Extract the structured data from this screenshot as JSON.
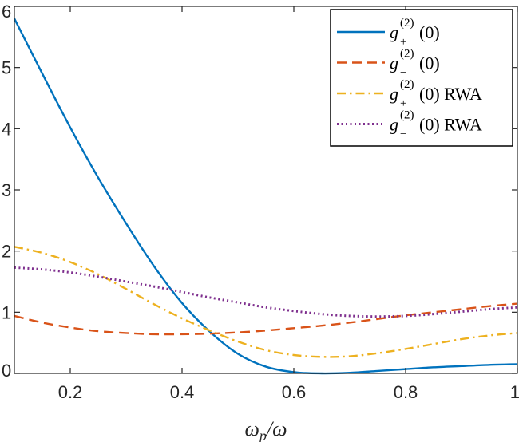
{
  "chart_data": {
    "type": "line",
    "title": "",
    "xlabel_main": "ω",
    "xlabel_sub": "p",
    "xlabel_rest": "/ω",
    "ylabel": "",
    "xlim": [
      0.1,
      1.0
    ],
    "ylim": [
      0,
      6
    ],
    "x_ticks": [
      0.2,
      0.4,
      0.6,
      0.8,
      1
    ],
    "x_tick_labels": [
      "0.2",
      "0.4",
      "0.6",
      "0.8",
      "1"
    ],
    "y_ticks": [
      0,
      1,
      2,
      3,
      4,
      5,
      6
    ],
    "y_tick_labels": [
      "0",
      "1",
      "2",
      "3",
      "4",
      "5",
      "6"
    ],
    "grid": false,
    "legend_position": "top-right",
    "series": [
      {
        "name": "g_+^(2)(0)",
        "legend": {
          "g": "g",
          "sub": "+",
          "sup": "(2)",
          "arg": "(0)",
          "suffix": ""
        },
        "color": "#0072BD",
        "style": "solid",
        "x": [
          0.1,
          0.15,
          0.2,
          0.25,
          0.3,
          0.35,
          0.4,
          0.45,
          0.5,
          0.55,
          0.6,
          0.65,
          0.7,
          0.75,
          0.8,
          0.85,
          0.9,
          0.95,
          1.0
        ],
        "y": [
          5.8,
          4.9,
          4.02,
          3.2,
          2.45,
          1.75,
          1.15,
          0.68,
          0.32,
          0.11,
          0.02,
          0.0,
          0.01,
          0.04,
          0.07,
          0.1,
          0.12,
          0.14,
          0.15
        ]
      },
      {
        "name": "g_-^(2)(0)",
        "legend": {
          "g": "g",
          "sub": "−",
          "sup": "(2)",
          "arg": "(0)",
          "suffix": ""
        },
        "color": "#D95319",
        "style": "dashed",
        "x": [
          0.1,
          0.15,
          0.2,
          0.25,
          0.3,
          0.35,
          0.4,
          0.45,
          0.5,
          0.55,
          0.6,
          0.65,
          0.7,
          0.75,
          0.8,
          0.85,
          0.9,
          0.95,
          1.0
        ],
        "y": [
          0.94,
          0.83,
          0.75,
          0.69,
          0.66,
          0.64,
          0.64,
          0.65,
          0.67,
          0.7,
          0.74,
          0.78,
          0.83,
          0.89,
          0.95,
          1.0,
          1.05,
          1.1,
          1.14
        ]
      },
      {
        "name": "g_+^(2)(0) RWA",
        "legend": {
          "g": "g",
          "sub": "+",
          "sup": "(2)",
          "arg": "(0)",
          "suffix": "RWA"
        },
        "color": "#EDB120",
        "style": "dashdot",
        "x": [
          0.1,
          0.15,
          0.2,
          0.25,
          0.3,
          0.35,
          0.4,
          0.45,
          0.5,
          0.55,
          0.6,
          0.65,
          0.7,
          0.75,
          0.8,
          0.85,
          0.9,
          0.95,
          1.0
        ],
        "y": [
          2.07,
          1.97,
          1.82,
          1.62,
          1.38,
          1.13,
          0.9,
          0.7,
          0.52,
          0.38,
          0.3,
          0.27,
          0.28,
          0.33,
          0.4,
          0.48,
          0.56,
          0.62,
          0.66
        ]
      },
      {
        "name": "g_-^(2)(0) RWA",
        "legend": {
          "g": "g",
          "sub": "−",
          "sup": "(2)",
          "arg": "(0)",
          "suffix": "RWA"
        },
        "color": "#7E2F8E",
        "style": "dotted",
        "x": [
          0.1,
          0.15,
          0.2,
          0.25,
          0.3,
          0.35,
          0.4,
          0.45,
          0.5,
          0.55,
          0.6,
          0.65,
          0.7,
          0.75,
          0.8,
          0.85,
          0.9,
          0.95,
          1.0
        ],
        "y": [
          1.73,
          1.7,
          1.65,
          1.58,
          1.5,
          1.42,
          1.33,
          1.24,
          1.16,
          1.08,
          1.02,
          0.97,
          0.94,
          0.93,
          0.94,
          0.97,
          1.01,
          1.05,
          1.08
        ]
      }
    ]
  }
}
